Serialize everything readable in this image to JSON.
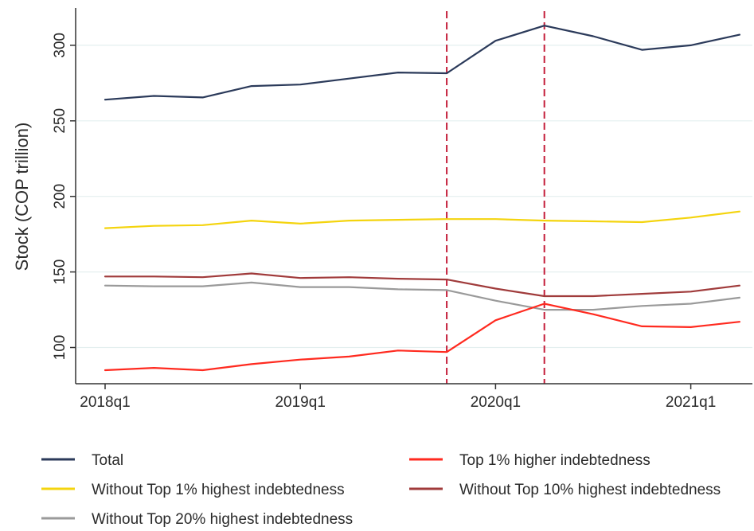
{
  "chart_data": {
    "type": "line",
    "title": "",
    "xlabel": "",
    "ylabel": "Stock (COP trillion)",
    "x": [
      "2018q1",
      "2018q2",
      "2018q3",
      "2018q4",
      "2019q1",
      "2019q2",
      "2019q3",
      "2019q4",
      "2020q1",
      "2020q2",
      "2020q3",
      "2020q4",
      "2021q1",
      "2021q2"
    ],
    "x_tick_labels": [
      "2018q1",
      "2019q1",
      "2020q1",
      "2021q1"
    ],
    "y_ticks": [
      100,
      150,
      200,
      250,
      300
    ],
    "ylim": [
      80,
      320
    ],
    "grid": "horizontal",
    "legend_position": "bottom",
    "vertical_markers": [
      "2019q4",
      "2020q2"
    ],
    "series": [
      {
        "name": "Total",
        "color": "#2b3a5a",
        "values": [
          264,
          266.5,
          265.5,
          273,
          274,
          278,
          282,
          281.5,
          303,
          313,
          306,
          297,
          300,
          307
        ]
      },
      {
        "name": "Top 1% higher indebtedness",
        "color": "#ff2a1f",
        "values": [
          85,
          86.5,
          85,
          89,
          92,
          94,
          98,
          97,
          118,
          129,
          122,
          114,
          113.5,
          117
        ]
      },
      {
        "name": "Without Top 1% highest indebtedness",
        "color": "#f4d40e",
        "values": [
          179,
          180.5,
          181,
          184,
          182,
          184,
          184.5,
          185,
          185,
          184,
          183.5,
          183,
          186,
          190
        ]
      },
      {
        "name": "Without Top 10% highest indebtedness",
        "color": "#a03b3b",
        "values": [
          147,
          147,
          146.5,
          149,
          146,
          146.5,
          145.5,
          145,
          139,
          134,
          134,
          135.5,
          137,
          141
        ]
      },
      {
        "name": "Without Top 20% highest indebtedness",
        "color": "#9a9a9a",
        "values": [
          141,
          140.5,
          140.5,
          143,
          140,
          140,
          138.5,
          138,
          131,
          125,
          125,
          127.5,
          129,
          133
        ]
      }
    ]
  },
  "colors": {
    "grid": "#e4efef",
    "axis": "#333333",
    "marker": "#c41e3a"
  }
}
